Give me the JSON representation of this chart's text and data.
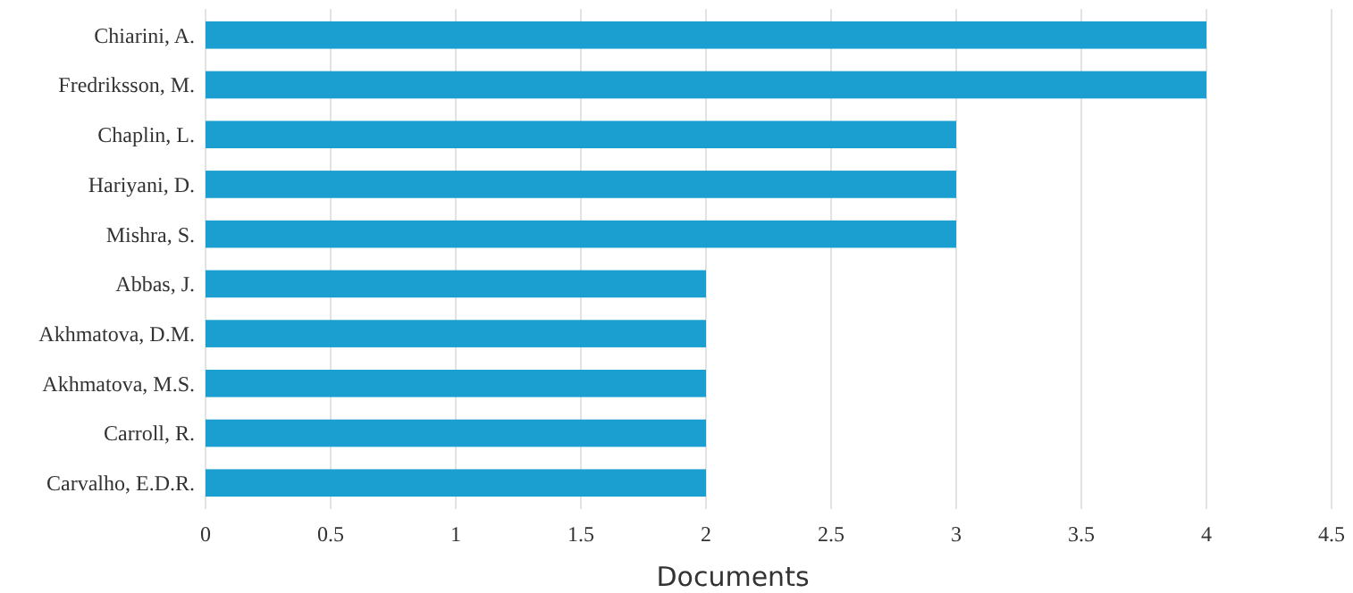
{
  "chart_data": {
    "type": "bar",
    "orientation": "horizontal",
    "xlabel": "Documents",
    "categories": [
      "Chiarini, A.",
      "Fredriksson, M.",
      "Chaplin, L.",
      "Hariyani, D.",
      "Mishra, S.",
      "Abbas, J.",
      "Akhmatova, D.M.",
      "Akhmatova, M.S.",
      "Carroll, R.",
      "Carvalho, E.D.R."
    ],
    "values": [
      4,
      4,
      3,
      3,
      3,
      2,
      2,
      2,
      2,
      2
    ],
    "color": "#1a9fd0",
    "xlim": [
      0,
      4.5
    ],
    "xticks": [
      0,
      0.5,
      1,
      1.5,
      2,
      2.5,
      3,
      3.5,
      4,
      4.5
    ],
    "grid": "x"
  }
}
